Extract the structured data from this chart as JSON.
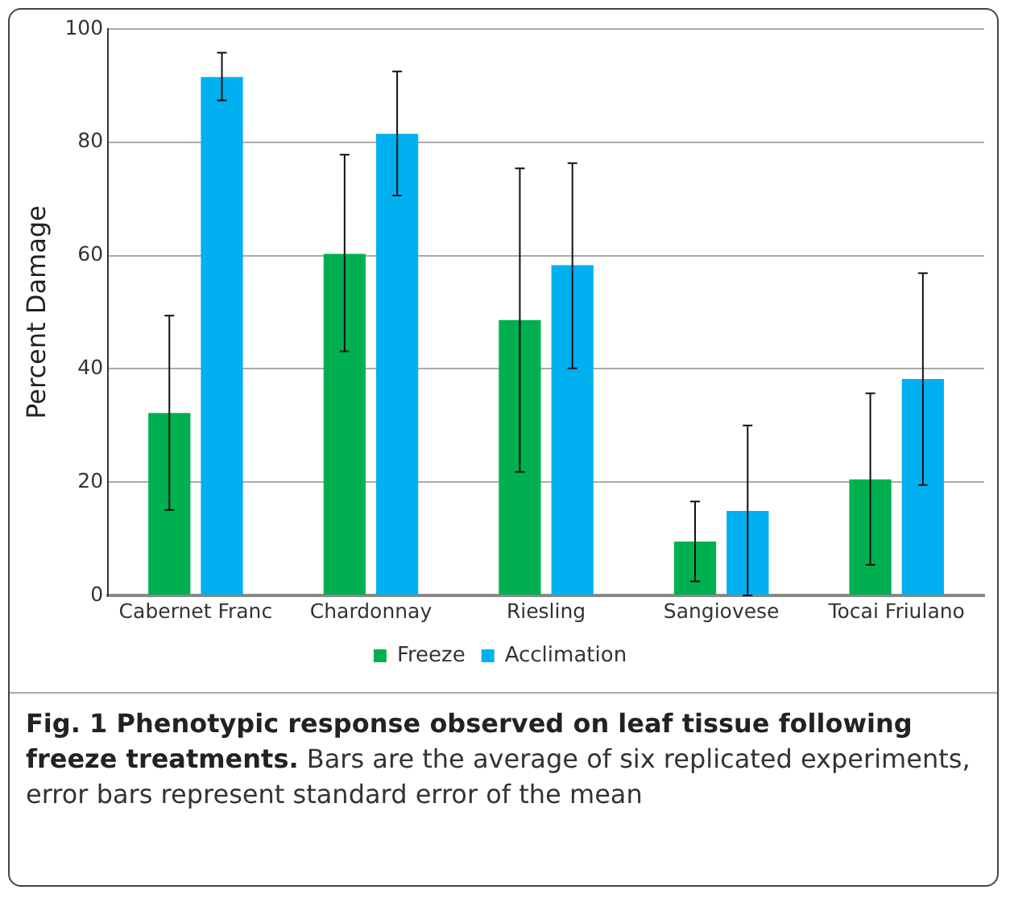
{
  "chart_data": {
    "type": "bar",
    "title": "Fig. 1 Phenotypic response observed on leaf tissue following freeze treatments.",
    "ylabel": "Percent Damage",
    "categories": [
      "Cabernet Franc",
      "Chardonnay",
      "Riesling",
      "Sangiovese",
      "Tocai Friulano"
    ],
    "series": [
      {
        "name": "Freeze",
        "color": "#00b050",
        "values": [
          32.2,
          60.3,
          48.6,
          9.5,
          20.5
        ],
        "errors": [
          [
            15.1,
            49.4
          ],
          [
            43.1,
            77.8
          ],
          [
            21.8,
            75.4
          ],
          [
            2.5,
            16.6
          ],
          [
            5.4,
            35.7
          ]
        ]
      },
      {
        "name": "Acclimation",
        "color": "#00b0f0",
        "values": [
          91.5,
          81.5,
          58.3,
          14.9,
          38.2
        ],
        "errors": [
          [
            87.4,
            95.8
          ],
          [
            70.6,
            92.5
          ],
          [
            40.1,
            76.3
          ],
          [
            0,
            30.0
          ],
          [
            19.5,
            56.9
          ]
        ]
      }
    ],
    "ylim": [
      0,
      100
    ],
    "yticks": [
      0,
      20,
      40,
      60,
      80,
      100
    ],
    "grid": "y",
    "legend": "bottom",
    "annotations": [
      "Bars are the average of six replicated experiments, error bars represent standard error of the mean"
    ]
  }
}
